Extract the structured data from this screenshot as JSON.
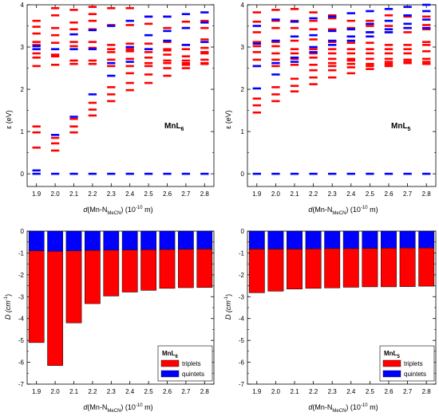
{
  "colors": {
    "triplet": "#ff0000",
    "quintet": "#0000ff"
  },
  "x_ticks": [
    "1.9",
    "2.0",
    "2.1",
    "2.2",
    "2.3",
    "2.4",
    "2.5",
    "2.6",
    "2.7",
    "2.8"
  ],
  "axis_labels": {
    "x_prefix": "d",
    "x_main": "(Mn-N",
    "x_sub": "MeCN",
    "x_suffix": ") (10",
    "x_exp": "-10",
    "x_end": " m)",
    "y_energy": "ε (eV)",
    "y_d_main": "D (cm",
    "y_d_exp": "-1",
    "y_d_end": ")"
  },
  "legend": {
    "triplets": "triplets",
    "quintets": "quintets"
  },
  "chart_data": [
    {
      "type": "scatter",
      "panel": "top-left",
      "label_main": "MnL",
      "label_sub": "6",
      "ylabel": "ε (eV)",
      "ylim": [
        -0.3,
        4.0
      ],
      "yticks": [
        0,
        1,
        2,
        3,
        4
      ],
      "x": [
        1.9,
        2.0,
        2.1,
        2.2,
        2.3,
        2.4,
        2.5,
        2.6,
        2.7,
        2.8
      ],
      "series": [
        {
          "name": "triplets",
          "levels": [
            [
              0.62,
              0.98,
              1.12,
              2.55,
              2.75,
              2.85,
              3.05,
              3.12,
              3.32,
              3.48,
              3.62
            ],
            [
              0.55,
              0.72,
              0.85,
              2.58,
              2.78,
              2.82,
              3.1,
              3.28,
              3.45,
              3.75,
              3.92
            ],
            [
              0.98,
              1.12,
              1.3,
              2.6,
              2.68,
              3.02,
              3.12,
              3.42,
              3.58,
              3.88
            ],
            [
              1.38,
              1.52,
              1.68,
              2.6,
              2.68,
              2.98,
              3.12,
              3.42,
              3.62,
              3.78,
              3.95
            ],
            [
              1.72,
              1.88,
              2.05,
              2.55,
              2.7,
              2.88,
              2.95,
              3.05,
              3.52,
              3.92
            ],
            [
              1.98,
              2.15,
              2.38,
              2.55,
              2.72,
              2.9,
              2.95,
              3.08,
              3.52,
              3.92
            ],
            [
              2.15,
              2.35,
              2.55,
              2.62,
              2.75,
              2.88,
              2.95,
              3.08,
              3.55,
              3.72
            ],
            [
              2.32,
              2.5,
              2.62,
              2.68,
              2.82,
              2.92,
              2.95,
              3.12,
              3.45,
              3.72
            ],
            [
              2.5,
              2.58,
              2.62,
              2.68,
              2.78,
              2.95,
              3.05,
              3.45,
              3.6
            ],
            [
              2.6,
              2.62,
              2.7,
              2.85,
              2.88,
              2.98,
              3.18,
              3.45,
              3.62
            ]
          ]
        },
        {
          "name": "quintets",
          "levels": [
            [
              0,
              0.08,
              2.95,
              3.02
            ],
            [
              0,
              0.92,
              2.95
            ],
            [
              0,
              1.35,
              2.95,
              3.3
            ],
            [
              0,
              1.88,
              2.95,
              3.4
            ],
            [
              0,
              2.32,
              2.62,
              3.5
            ],
            [
              0,
              2.65,
              3.0,
              3.62
            ],
            [
              0,
              2.95,
              3.28,
              3.72
            ],
            [
              0,
              3.15,
              3.38,
              3.72
            ],
            [
              0,
              3.05,
              3.45,
              3.78
            ],
            [
              0,
              3.12,
              3.58,
              3.82
            ]
          ]
        }
      ]
    },
    {
      "type": "scatter",
      "panel": "top-right",
      "label_main": "MnL",
      "label_sub": "5",
      "ylabel": "ε (eV)",
      "ylim": [
        -0.3,
        4.0
      ],
      "yticks": [
        0,
        1,
        2,
        3,
        4
      ],
      "x": [
        1.9,
        2.0,
        2.1,
        2.2,
        2.3,
        2.4,
        2.5,
        2.6,
        2.7,
        2.8
      ],
      "series": [
        {
          "name": "triplets",
          "levels": [
            [
              1.45,
              1.62,
              1.78,
              2.55,
              2.7,
              2.88,
              3.02,
              3.12,
              3.35,
              3.6,
              3.82
            ],
            [
              1.72,
              1.88,
              2.05,
              2.55,
              2.7,
              2.85,
              3.02,
              3.12,
              3.45,
              3.62,
              3.88
            ],
            [
              1.95,
              2.08,
              2.25,
              2.58,
              2.72,
              2.85,
              2.95,
              3.15,
              3.45,
              3.62,
              3.9
            ],
            [
              2.12,
              2.28,
              2.45,
              2.58,
              2.75,
              2.85,
              2.95,
              3.18,
              3.42,
              3.62,
              3.82
            ],
            [
              2.28,
              2.45,
              2.55,
              2.62,
              2.72,
              2.85,
              2.95,
              3.12,
              3.42,
              3.68,
              3.75
            ],
            [
              2.38,
              2.52,
              2.6,
              2.68,
              2.72,
              2.85,
              2.95,
              3.1,
              3.25,
              3.45,
              3.62
            ],
            [
              2.48,
              2.55,
              2.6,
              2.72,
              2.85,
              2.95,
              3.1,
              3.35,
              3.5,
              3.62
            ],
            [
              2.55,
              2.6,
              2.65,
              2.72,
              2.85,
              2.95,
              3.05,
              3.35,
              3.5,
              3.75
            ],
            [
              2.62,
              2.65,
              2.7,
              2.85,
              2.95,
              3.05,
              3.35,
              3.45,
              3.72
            ],
            [
              2.6,
              2.65,
              2.72,
              2.9,
              3.05,
              3.12,
              3.42,
              3.52,
              3.72
            ]
          ]
        },
        {
          "name": "quintets",
          "levels": [
            [
              0,
              2.02,
              2.55,
              3.08,
              3.5
            ],
            [
              0,
              2.35,
              2.62,
              3.15,
              3.65
            ],
            [
              0,
              2.65,
              2.75,
              3.25,
              3.6
            ],
            [
              0,
              2.88,
              3.0,
              3.28,
              3.68
            ],
            [
              0,
              3.05,
              3.15,
              3.38,
              3.72
            ],
            [
              0,
              3.15,
              3.25,
              3.42,
              3.8
            ],
            [
              0,
              3.25,
              3.35,
              3.55,
              3.85
            ],
            [
              0,
              3.35,
              3.42,
              3.62,
              3.9
            ],
            [
              0,
              3.45,
              3.55,
              3.75,
              3.95
            ],
            [
              0,
              3.45,
              3.65,
              3.85,
              4.0
            ]
          ]
        }
      ]
    },
    {
      "type": "bar",
      "panel": "bottom-left",
      "legend_title_main": "MnL",
      "legend_title_sub": "6",
      "ylabel": "D (cm-1)",
      "ylim": [
        -7,
        0
      ],
      "yticks": [
        0,
        -1,
        -2,
        -3,
        -4,
        -5,
        -6,
        -7
      ],
      "categories": [
        "1.9",
        "2.0",
        "2.1",
        "2.2",
        "2.3",
        "2.4",
        "2.5",
        "2.6",
        "2.7",
        "2.8"
      ],
      "series": [
        {
          "name": "quintets",
          "values": [
            -0.9,
            -0.92,
            -0.9,
            -0.88,
            -0.87,
            -0.86,
            -0.85,
            -0.84,
            -0.83,
            -0.82
          ]
        },
        {
          "name": "triplets",
          "values": [
            -4.2,
            -5.23,
            -3.3,
            -2.44,
            -2.1,
            -1.93,
            -1.86,
            -1.78,
            -1.76,
            -1.76
          ]
        }
      ],
      "totals": [
        -5.1,
        -6.15,
        -4.2,
        -3.32,
        -2.97,
        -2.79,
        -2.71,
        -2.62,
        -2.59,
        -2.58
      ]
    },
    {
      "type": "bar",
      "panel": "bottom-right",
      "legend_title_main": "MnL",
      "legend_title_sub": "5",
      "ylabel": "D (cm-1)",
      "ylim": [
        -7,
        0
      ],
      "yticks": [
        0,
        -1,
        -2,
        -3,
        -4,
        -5,
        -6,
        -7
      ],
      "categories": [
        "1.9",
        "2.0",
        "2.1",
        "2.2",
        "2.3",
        "2.4",
        "2.5",
        "2.6",
        "2.7",
        "2.8"
      ],
      "series": [
        {
          "name": "quintets",
          "values": [
            -0.82,
            -0.82,
            -0.82,
            -0.81,
            -0.8,
            -0.8,
            -0.79,
            -0.78,
            -0.77,
            -0.77
          ]
        },
        {
          "name": "triplets",
          "values": [
            -2.0,
            -1.93,
            -1.83,
            -1.81,
            -1.8,
            -1.77,
            -1.76,
            -1.77,
            -1.77,
            -1.75
          ]
        }
      ],
      "totals": [
        -2.82,
        -2.75,
        -2.65,
        -2.62,
        -2.6,
        -2.57,
        -2.55,
        -2.55,
        -2.54,
        -2.52
      ]
    }
  ]
}
